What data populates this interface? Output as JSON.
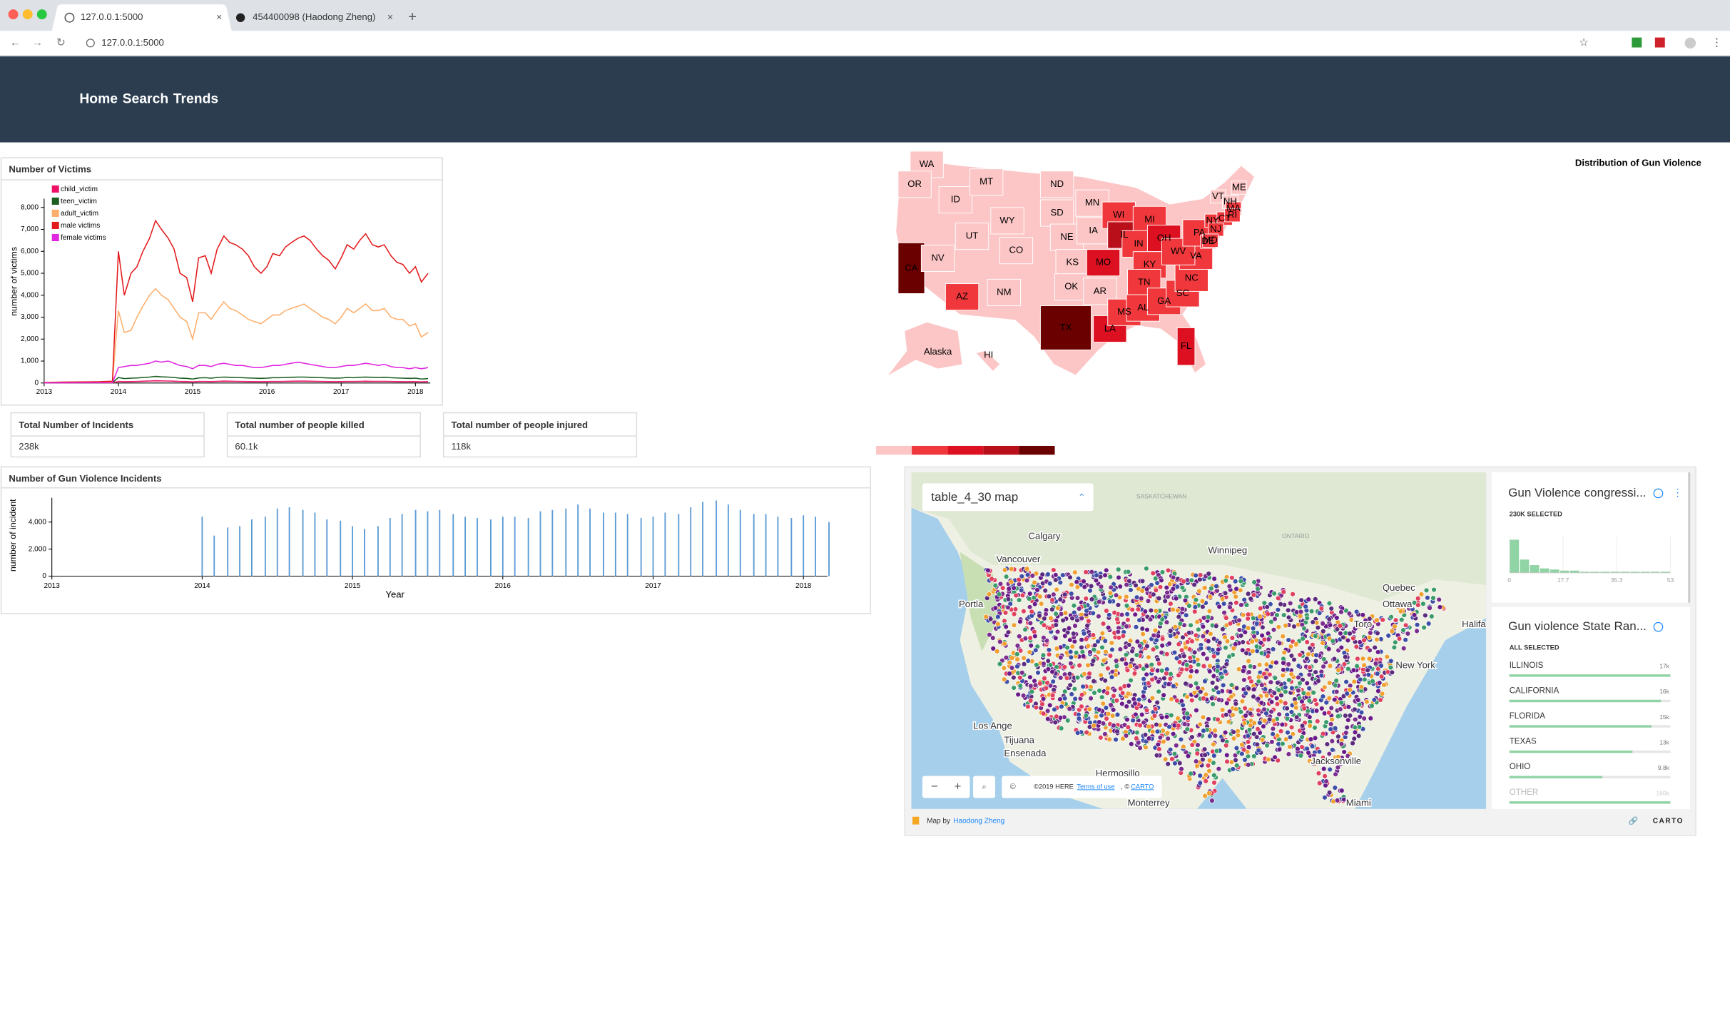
{
  "browser": {
    "tabs": [
      "127.0.0.1:5000",
      "454400098 (Haodong Zheng)"
    ],
    "url": "127.0.0.1:5000"
  },
  "nav": {
    "links": [
      "Home",
      "Search",
      "Trends"
    ]
  },
  "victims_chart": {
    "type": "line",
    "title": "Number of Victims",
    "y_label": "number of victims",
    "xlim": [
      2013,
      2018.2
    ],
    "xticks": [
      2013,
      2014,
      2015,
      2016,
      2017,
      2018
    ],
    "ylim": [
      0,
      8400
    ],
    "yticks": [
      0,
      {
        "value": 1000,
        "label": "1,000"
      },
      {
        "value": 2000,
        "label": "2,000"
      },
      {
        "value": 3000,
        "label": "3,000"
      },
      {
        "value": 4000,
        "label": "4,000"
      },
      {
        "value": 5000,
        "label": "5,000"
      },
      {
        "value": 6000,
        "label": "6,000"
      },
      {
        "value": 7000,
        "label": "7,000"
      },
      {
        "value": 8000,
        "label": "8,000"
      }
    ],
    "x": [
      2013,
      2013.25,
      2013.5,
      2013.75,
      2013.92,
      2014,
      2014.08,
      2014.17,
      2014.25,
      2014.33,
      2014.42,
      2014.5,
      2014.58,
      2014.67,
      2014.75,
      2014.83,
      2014.92,
      2015,
      2015.08,
      2015.17,
      2015.25,
      2015.33,
      2015.42,
      2015.5,
      2015.58,
      2015.67,
      2015.75,
      2015.83,
      2015.92,
      2016,
      2016.08,
      2016.17,
      2016.25,
      2016.33,
      2016.42,
      2016.5,
      2016.58,
      2016.67,
      2016.75,
      2016.83,
      2016.92,
      2017,
      2017.08,
      2017.17,
      2017.25,
      2017.33,
      2017.42,
      2017.5,
      2017.58,
      2017.67,
      2017.75,
      2017.83,
      2017.92,
      2018,
      2018.08,
      2018.17
    ],
    "series": [
      {
        "name": "child_victim",
        "color": "#ee1166",
        "values": [
          2,
          3,
          4,
          5,
          6,
          70,
          60,
          65,
          70,
          80,
          90,
          100,
          95,
          90,
          80,
          70,
          65,
          55,
          70,
          70,
          65,
          75,
          85,
          80,
          75,
          70,
          65,
          60,
          60,
          65,
          70,
          70,
          75,
          80,
          85,
          85,
          80,
          75,
          70,
          65,
          60,
          65,
          70,
          70,
          75,
          80,
          75,
          75,
          75,
          70,
          65,
          60,
          60,
          60,
          55,
          60
        ]
      },
      {
        "name": "teen_victim",
        "color": "#1b5e20",
        "values": [
          3,
          5,
          6,
          8,
          10,
          250,
          200,
          220,
          230,
          250,
          270,
          300,
          280,
          270,
          250,
          220,
          210,
          180,
          230,
          240,
          220,
          250,
          270,
          260,
          250,
          240,
          230,
          220,
          210,
          220,
          240,
          240,
          250,
          260,
          270,
          270,
          260,
          250,
          240,
          230,
          220,
          230,
          250,
          240,
          260,
          270,
          260,
          250,
          260,
          240,
          230,
          220,
          210,
          220,
          180,
          200
        ]
      },
      {
        "name": "adult_victim",
        "color": "#fdae6b",
        "values": [
          15,
          25,
          30,
          40,
          50,
          3300,
          2300,
          2400,
          3000,
          3500,
          4000,
          4300,
          4000,
          3800,
          3400,
          3000,
          2800,
          2000,
          3200,
          3200,
          2900,
          3300,
          3700,
          3400,
          3300,
          3100,
          2900,
          2800,
          2700,
          2900,
          3100,
          3100,
          3300,
          3400,
          3500,
          3600,
          3400,
          3200,
          3000,
          2900,
          2700,
          3000,
          3400,
          3200,
          3400,
          3600,
          3300,
          3300,
          3400,
          3000,
          2900,
          2900,
          2600,
          2700,
          2100,
          2300
        ]
      },
      {
        "name": "male victims",
        "color": "#e31a1c",
        "values": [
          20,
          40,
          50,
          60,
          80,
          6000,
          4000,
          5000,
          5300,
          6000,
          6600,
          7400,
          7000,
          6600,
          6100,
          5000,
          4800,
          3700,
          5700,
          5800,
          5000,
          6100,
          6700,
          6400,
          6300,
          6100,
          5800,
          5300,
          5000,
          5300,
          5900,
          5800,
          6200,
          6400,
          6600,
          6700,
          6500,
          6100,
          5800,
          5600,
          5200,
          5700,
          6300,
          6100,
          6500,
          6800,
          6300,
          6200,
          6300,
          5800,
          5500,
          5400,
          5000,
          5300,
          4600,
          5000
        ]
      },
      {
        "name": "female victims",
        "color": "#e026e0",
        "values": [
          5,
          8,
          10,
          12,
          15,
          700,
          750,
          800,
          800,
          850,
          900,
          1000,
          950,
          1000,
          900,
          800,
          750,
          650,
          800,
          800,
          750,
          850,
          900,
          850,
          800,
          800,
          750,
          700,
          700,
          750,
          800,
          800,
          850,
          900,
          950,
          900,
          850,
          800,
          750,
          700,
          700,
          750,
          800,
          800,
          850,
          900,
          850,
          800,
          850,
          750,
          700,
          700,
          650,
          700,
          650,
          700
        ]
      }
    ]
  },
  "stats": [
    {
      "label": "Total Number of Incidents",
      "value": "238k"
    },
    {
      "label": "Total number of people killed",
      "value": "60.1k"
    },
    {
      "label": "Total number of people injured",
      "value": "118k"
    }
  ],
  "incidents_chart": {
    "type": "bar",
    "title": "Number of Gun Violence Incidents",
    "y_label": "number of incident",
    "x_label": "Year",
    "xlim": [
      2013,
      2018.16
    ],
    "xticks": [
      2013,
      2014,
      2015,
      2016,
      2017,
      2018
    ],
    "ylim": [
      0,
      5800
    ],
    "yticks": [
      0,
      {
        "value": 2000,
        "label": "2,000"
      },
      {
        "value": 4000,
        "label": "4,000"
      }
    ],
    "color": "#5b9bd5",
    "x": [
      2014,
      2014.08,
      2014.17,
      2014.25,
      2014.33,
      2014.42,
      2014.5,
      2014.58,
      2014.67,
      2014.75,
      2014.83,
      2014.92,
      2015,
      2015.08,
      2015.17,
      2015.25,
      2015.33,
      2015.42,
      2015.5,
      2015.58,
      2015.67,
      2015.75,
      2015.83,
      2015.92,
      2016,
      2016.08,
      2016.17,
      2016.25,
      2016.33,
      2016.42,
      2016.5,
      2016.58,
      2016.67,
      2016.75,
      2016.83,
      2016.92,
      2017,
      2017.08,
      2017.17,
      2017.25,
      2017.33,
      2017.42,
      2017.5,
      2017.58,
      2017.67,
      2017.75,
      2017.83,
      2017.92,
      2018,
      2018.08,
      2018.17
    ],
    "values": [
      4400,
      3000,
      3600,
      3700,
      4200,
      4400,
      5000,
      5100,
      4900,
      4700,
      4200,
      4100,
      3700,
      3500,
      3700,
      4300,
      4600,
      4900,
      4800,
      4900,
      4600,
      4400,
      4300,
      4200,
      4400,
      4400,
      4300,
      4800,
      4900,
      5000,
      5300,
      5000,
      4700,
      4700,
      4600,
      4300,
      4400,
      4700,
      4600,
      5100,
      5500,
      5600,
      5300,
      4900,
      4600,
      4600,
      4400,
      4300,
      4500,
      4400,
      4000
    ]
  },
  "choropleth": {
    "title": "Distribution of Gun Violence",
    "legend_colors": [
      "#fcc6c6",
      "#f0383c",
      "#dc1020",
      "#b80f1a",
      "#6b0000"
    ],
    "states": [
      {
        "label": "WA",
        "level": 0
      },
      {
        "label": "OR",
        "level": 0
      },
      {
        "label": "CA",
        "level": 4
      },
      {
        "label": "NV",
        "level": 0
      },
      {
        "label": "ID",
        "level": 0
      },
      {
        "label": "MT",
        "level": 0
      },
      {
        "label": "WY",
        "level": 0
      },
      {
        "label": "UT",
        "level": 0
      },
      {
        "label": "CO",
        "level": 0
      },
      {
        "label": "AZ",
        "level": 1
      },
      {
        "label": "NM",
        "level": 0
      },
      {
        "label": "ND",
        "level": 0
      },
      {
        "label": "SD",
        "level": 0
      },
      {
        "label": "NE",
        "level": 0
      },
      {
        "label": "KS",
        "level": 0
      },
      {
        "label": "OK",
        "level": 0
      },
      {
        "label": "TX",
        "level": 4
      },
      {
        "label": "MN",
        "level": 0
      },
      {
        "label": "IA",
        "level": 0
      },
      {
        "label": "MO",
        "level": 2
      },
      {
        "label": "AR",
        "level": 0
      },
      {
        "label": "LA",
        "level": 2
      },
      {
        "label": "WI",
        "level": 1
      },
      {
        "label": "IL",
        "level": 3
      },
      {
        "label": "MI",
        "level": 1
      },
      {
        "label": "IN",
        "level": 1
      },
      {
        "label": "OH",
        "level": 2
      },
      {
        "label": "KY",
        "level": 1
      },
      {
        "label": "TN",
        "level": 1
      },
      {
        "label": "MS",
        "level": 1
      },
      {
        "label": "AL",
        "level": 1
      },
      {
        "label": "GA",
        "level": 1
      },
      {
        "label": "FL",
        "level": 2
      },
      {
        "label": "SC",
        "level": 1
      },
      {
        "label": "NC",
        "level": 1
      },
      {
        "label": "VA",
        "level": 1
      },
      {
        "label": "WV",
        "level": 1
      },
      {
        "label": "PA",
        "level": 1
      },
      {
        "label": "NY",
        "level": 1
      },
      {
        "label": "VT",
        "level": 0
      },
      {
        "label": "NH",
        "level": 0
      },
      {
        "label": "ME",
        "level": 0
      },
      {
        "label": "MA",
        "level": 1
      },
      {
        "label": "CT",
        "level": 1
      },
      {
        "label": "RI",
        "level": 1
      },
      {
        "label": "NJ",
        "level": 1
      },
      {
        "label": "DE",
        "level": 1
      },
      {
        "label": "MD",
        "level": 1
      },
      {
        "label": "Alaska",
        "level": 0
      },
      {
        "label": "HI",
        "level": 0
      }
    ]
  },
  "carto_map": {
    "map_title": "table_4_30 map",
    "map_labels": [
      "Calgary",
      "Winnipeg",
      "Vancouver",
      "Quebec",
      "Ottawa",
      "Portla",
      "Los Ange",
      "Tijuana",
      "Ensenada",
      "New York",
      "Miami",
      "Monterrey",
      "Hermosillo",
      "Jacksonville",
      "Halifa",
      "Toro",
      "SASKATCHEWAN",
      "ONTARIO"
    ],
    "attribution": [
      "©2019 HERE",
      "Terms of use",
      ", ©",
      "CARTO"
    ],
    "histogram_widget": {
      "title": "Gun Violence congressi...",
      "subtitle": "230K SELECTED",
      "xlim": [
        0,
        53
      ],
      "xticks": [
        0,
        17.7,
        35.3,
        53
      ],
      "counts": [
        30,
        12,
        7,
        4,
        3,
        2,
        2,
        1,
        1,
        1,
        1,
        1,
        1,
        1,
        1,
        1
      ]
    },
    "ranking_widget": {
      "title": "Gun violence State Ran...",
      "subtitle": "ALL SELECTED",
      "rows": [
        "ILLINOIS",
        "CALIFORNIA",
        "FLORIDA",
        "TEXAS",
        "OHIO",
        "OTHER"
      ],
      "values": [
        17000,
        16000,
        15000,
        13000,
        9800,
        160000
      ],
      "value_labels": [
        "17k",
        "16k",
        "15k",
        "13k",
        "9.8k",
        "160k"
      ]
    },
    "footer": {
      "prefix": "Map by",
      "author": "Haodong Zheng",
      "logo": "CARTO"
    }
  }
}
